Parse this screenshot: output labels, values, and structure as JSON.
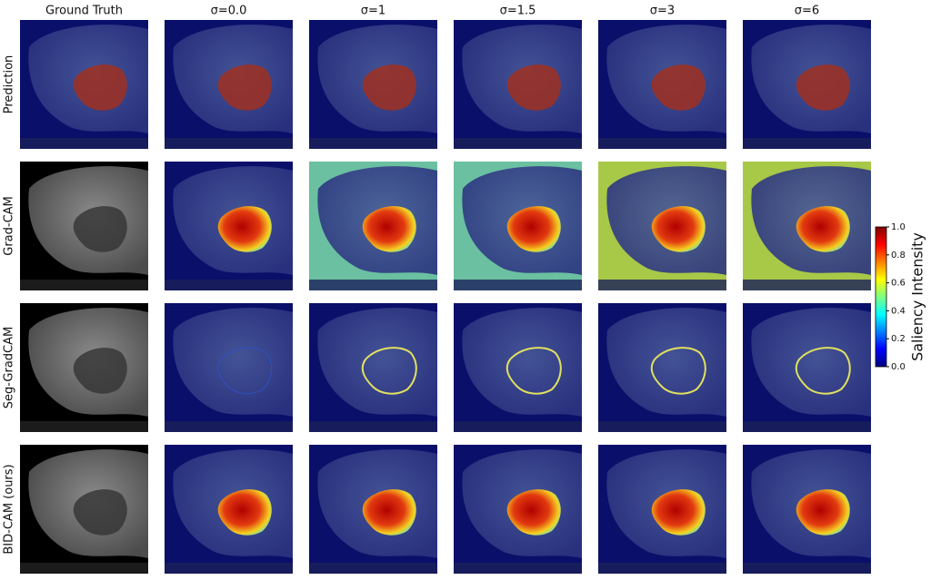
{
  "figure": {
    "columns": [
      "Ground Truth",
      "σ=0.0",
      "σ=1",
      "σ=1.5",
      "σ=3",
      "σ=6"
    ],
    "rows": [
      "Prediction",
      "Grad-CAM",
      "Seg-GradCAM",
      "BID-CAM (ours)"
    ],
    "colorbar": {
      "label": "Saliency Intensity",
      "lim": [
        0,
        1
      ],
      "ticks": [
        {
          "value": 0,
          "label": "0.0"
        },
        {
          "value": 0.2,
          "label": "0.2"
        },
        {
          "value": 0.4,
          "label": "0.4"
        },
        {
          "value": 0.6,
          "label": "0.6"
        },
        {
          "value": 0.8,
          "label": "0.8"
        },
        {
          "value": 1,
          "label": "1.0"
        }
      ]
    }
  }
}
